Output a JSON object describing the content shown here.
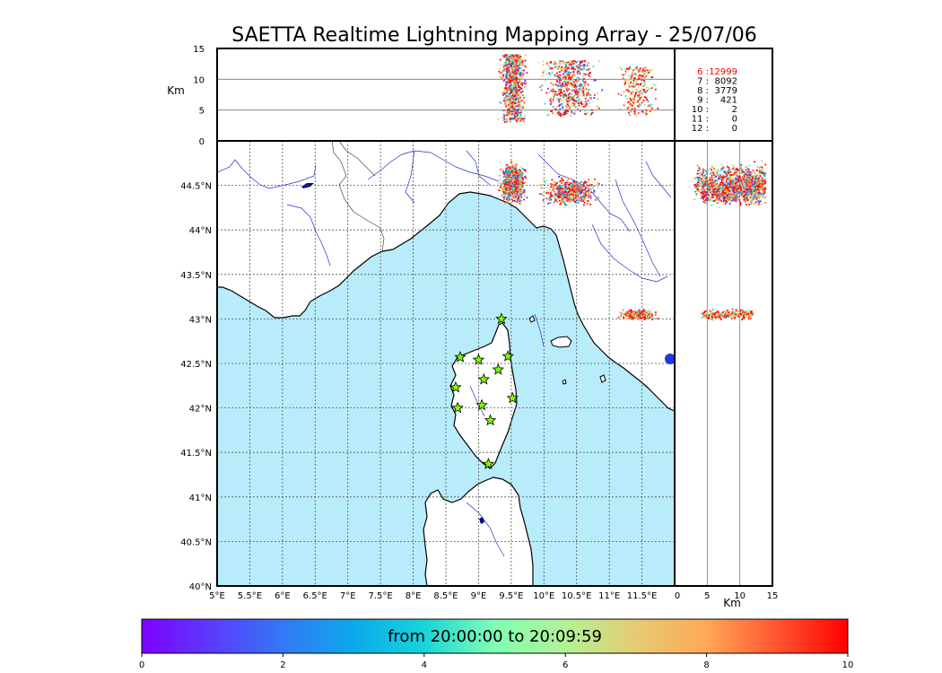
{
  "title": "SAETTA Realtime Lightning Mapping Array - 25/07/06",
  "units": {
    "km_top": "Km",
    "km_bottom": "Km"
  },
  "colorbar": {
    "label": "from 20:00:00 to 20:09:59",
    "ticks": [
      "0",
      "2",
      "4",
      "6",
      "8",
      "10"
    ],
    "range": [
      0,
      10
    ]
  },
  "map": {
    "lon_ticks": [
      "5°E",
      "5.5°E",
      "6°E",
      "6.5°E",
      "7°E",
      "7.5°E",
      "8°E",
      "8.5°E",
      "9°E",
      "9.5°E",
      "10°E",
      "10.5°E",
      "11°E",
      "11.5°E"
    ],
    "lat_ticks": [
      "40°N",
      "40.5°N",
      "41°N",
      "41.5°N",
      "42°N",
      "42.5°N",
      "43°N",
      "43.5°N",
      "44°N",
      "44.5°N"
    ],
    "lon_range": [
      5,
      12
    ],
    "lat_range": [
      40,
      45
    ],
    "sea_color": "#b8ecfa",
    "land_color": "#ffffff",
    "river_color": "#2a2ad8",
    "stations": [
      {
        "lon": 9.35,
        "lat": 43.0
      },
      {
        "lon": 8.72,
        "lat": 42.57
      },
      {
        "lon": 9.0,
        "lat": 42.54
      },
      {
        "lon": 9.45,
        "lat": 42.58
      },
      {
        "lon": 9.3,
        "lat": 42.43
      },
      {
        "lon": 9.08,
        "lat": 42.32
      },
      {
        "lon": 8.65,
        "lat": 42.23
      },
      {
        "lon": 9.52,
        "lat": 42.11
      },
      {
        "lon": 9.05,
        "lat": 42.03
      },
      {
        "lon": 8.68,
        "lat": 42.0
      },
      {
        "lon": 9.18,
        "lat": 41.86
      },
      {
        "lon": 9.15,
        "lat": 41.37
      }
    ],
    "station_color": "#7fff00"
  },
  "altitude_panel": {
    "km_ticks": [
      "0",
      "5",
      "10",
      "15"
    ],
    "km_range": [
      0,
      15
    ]
  },
  "side_panel": {
    "km_ticks": [
      "0",
      "5",
      "10",
      "15"
    ],
    "km_range": [
      0,
      15
    ]
  },
  "station_counts": [
    {
      "label": "6  :",
      "value": "12999",
      "color": "#ff0000"
    },
    {
      "label": "7  :",
      "value": "8092",
      "color": "#000000"
    },
    {
      "label": "8  :",
      "value": "3779",
      "color": "#000000"
    },
    {
      "label": "9  :",
      "value": "421",
      "color": "#000000"
    },
    {
      "label": "10  :",
      "value": "2",
      "color": "#000000"
    },
    {
      "label": "11  :",
      "value": "0",
      "color": "#000000"
    },
    {
      "label": "12  :",
      "value": "0",
      "color": "#000000"
    }
  ],
  "clusters": [
    {
      "lon": [
        9.38,
        9.68
      ],
      "lat": [
        44.35,
        44.7
      ],
      "alt": [
        3,
        14
      ],
      "n": 900,
      "tmin": 0,
      "tmax": 10
    },
    {
      "lon": [
        10.05,
        10.75
      ],
      "lat": [
        44.3,
        44.55
      ],
      "alt": [
        4,
        13
      ],
      "n": 600,
      "tmin": 0,
      "tmax": 10
    },
    {
      "lon": [
        11.2,
        11.7
      ],
      "lat": [
        43.0,
        43.1
      ],
      "alt": [
        4,
        12
      ],
      "n": 250,
      "tmin": 3,
      "tmax": 10
    }
  ]
}
